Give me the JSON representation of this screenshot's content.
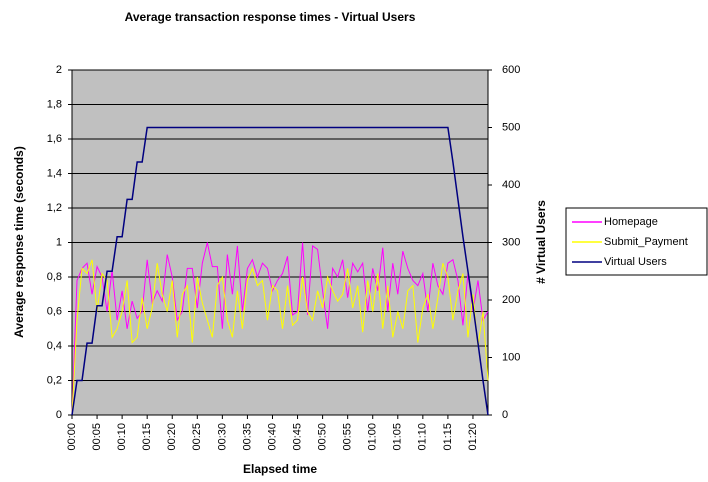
{
  "chart_data": {
    "type": "line",
    "title": "Average transaction response times - Virtual Users",
    "xlabel": "Elapsed time",
    "ylabel": "Average response time (seconds)",
    "y2label": "# Virtual Users",
    "categories": [
      "00:00",
      null,
      null,
      null,
      null,
      "00:05",
      null,
      null,
      null,
      null,
      "00:10",
      null,
      null,
      null,
      null,
      "00:15",
      null,
      null,
      null,
      null,
      "00:20",
      null,
      null,
      null,
      null,
      "00:25",
      null,
      null,
      null,
      null,
      "00:30",
      null,
      null,
      null,
      null,
      "00:35",
      null,
      null,
      null,
      null,
      "00:40",
      null,
      null,
      null,
      null,
      "00:45",
      null,
      null,
      null,
      null,
      "00:50",
      null,
      null,
      null,
      null,
      "00:55",
      null,
      null,
      null,
      null,
      "01:00",
      null,
      null,
      null,
      null,
      "01:05",
      null,
      null,
      null,
      null,
      "01:10",
      null,
      null,
      null,
      null,
      "01:15",
      null,
      null,
      null,
      null,
      "01:20",
      null,
      null,
      null
    ],
    "series": [
      {
        "name": "Homepage",
        "color": "#ff00ff",
        "values": [
          0,
          0.78,
          0.85,
          0.88,
          0.7,
          0.86,
          0.8,
          0.6,
          0.84,
          0.55,
          0.72,
          0.5,
          0.66,
          0.56,
          0.6,
          0.9,
          0.65,
          0.72,
          0.66,
          0.93,
          0.8,
          0.55,
          0.6,
          0.85,
          0.85,
          0.62,
          0.88,
          1,
          0.86,
          0.86,
          0.5,
          0.93,
          0.7,
          0.98,
          0.6,
          0.85,
          0.9,
          0.8,
          0.88,
          0.85,
          0.72,
          0.78,
          0.82,
          0.92,
          0.58,
          0.6,
          1,
          0.58,
          0.98,
          0.96,
          0.72,
          0.5,
          0.85,
          0.8,
          0.9,
          0.68,
          0.88,
          0.83,
          0.88,
          0.6,
          0.85,
          0.72,
          0.97,
          0.6,
          0.88,
          0.7,
          0.95,
          0.85,
          0.78,
          0.75,
          0.82,
          0.6,
          0.88,
          0.75,
          0.7,
          0.88,
          0.9,
          0.78,
          0.52,
          0.82,
          0.6,
          0.78,
          0.55,
          0.6
        ]
      },
      {
        "name": "Submit_Payment",
        "color": "#ffff00",
        "values": [
          0,
          0.55,
          0.85,
          0.82,
          0.9,
          0.6,
          0.82,
          0.78,
          0.45,
          0.5,
          0.6,
          0.78,
          0.42,
          0.45,
          0.68,
          0.5,
          0.62,
          0.88,
          0.7,
          0.6,
          0.78,
          0.45,
          0.7,
          0.75,
          0.42,
          0.8,
          0.65,
          0.55,
          0.45,
          0.75,
          0.8,
          0.55,
          0.45,
          0.72,
          0.5,
          0.78,
          0.85,
          0.75,
          0.78,
          0.55,
          0.75,
          0.72,
          0.5,
          0.75,
          0.52,
          0.55,
          0.8,
          0.6,
          0.55,
          0.72,
          0.62,
          0.8,
          0.72,
          0.66,
          0.7,
          0.85,
          0.62,
          0.75,
          0.48,
          0.78,
          0.6,
          0.82,
          0.5,
          0.75,
          0.45,
          0.6,
          0.5,
          0.72,
          0.75,
          0.42,
          0.62,
          0.7,
          0.5,
          0.68,
          0.88,
          0.8,
          0.55,
          0.72,
          0.82,
          0.45,
          0.7,
          0.4,
          0.6,
          0.2
        ]
      },
      {
        "name": "Virtual Users",
        "color": "#000080",
        "axis": "y2",
        "values": [
          0,
          60,
          60,
          125,
          125,
          190,
          190,
          250,
          250,
          310,
          310,
          375,
          375,
          440,
          440,
          500,
          500,
          500,
          500,
          500,
          500,
          500,
          500,
          500,
          500,
          500,
          500,
          500,
          500,
          500,
          500,
          500,
          500,
          500,
          500,
          500,
          500,
          500,
          500,
          500,
          500,
          500,
          500,
          500,
          500,
          500,
          500,
          500,
          500,
          500,
          500,
          500,
          500,
          500,
          500,
          500,
          500,
          500,
          500,
          500,
          500,
          500,
          500,
          500,
          500,
          500,
          500,
          500,
          500,
          500,
          500,
          500,
          500,
          500,
          500,
          500,
          440,
          375,
          310,
          250,
          190,
          125,
          60,
          0
        ]
      }
    ],
    "ylim": [
      0,
      2
    ],
    "yticks": [
      0,
      {
        "value": 0.2,
        "label": "0,2"
      },
      {
        "value": 0.4,
        "label": "0,4"
      },
      {
        "value": 0.6,
        "label": "0,6"
      },
      {
        "value": 0.8,
        "label": "0,8"
      },
      1,
      {
        "value": 1.2,
        "label": "1,2"
      },
      {
        "value": 1.4,
        "label": "1,4"
      },
      {
        "value": 1.6,
        "label": "1,6"
      },
      {
        "value": 1.8,
        "label": "1,8"
      },
      2
    ],
    "y2lim": [
      0,
      600
    ],
    "y2ticks": [
      0,
      100,
      200,
      300,
      400,
      500,
      600
    ],
    "grid": true,
    "legend": "right",
    "background": "#c0c0c0"
  }
}
